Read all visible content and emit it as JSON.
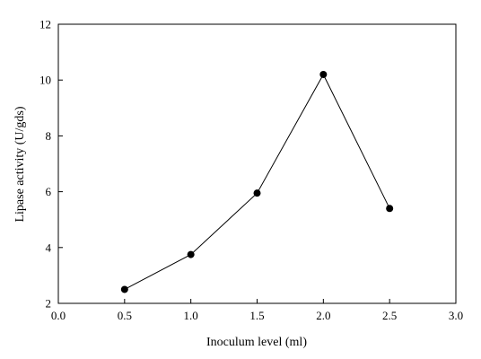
{
  "chart_data": {
    "type": "line",
    "title": "",
    "xlabel": "Inoculum level (ml)",
    "ylabel": "Lipase activity (U/gds)",
    "xlim": [
      0.0,
      3.0
    ],
    "ylim": [
      2,
      12
    ],
    "x_ticks": [
      "0.0",
      "0.5",
      "1.0",
      "1.5",
      "2.0",
      "2.5",
      "3.0"
    ],
    "y_ticks": [
      "2",
      "4",
      "6",
      "8",
      "10",
      "12"
    ],
    "grid": false,
    "legend": "none",
    "series": [
      {
        "x": [
          0.5,
          1.0,
          1.5,
          2.0,
          2.5
        ],
        "y": [
          2.5,
          3.75,
          5.95,
          10.2,
          5.4
        ],
        "marker": "filled-circle",
        "color": "#000000"
      }
    ]
  }
}
